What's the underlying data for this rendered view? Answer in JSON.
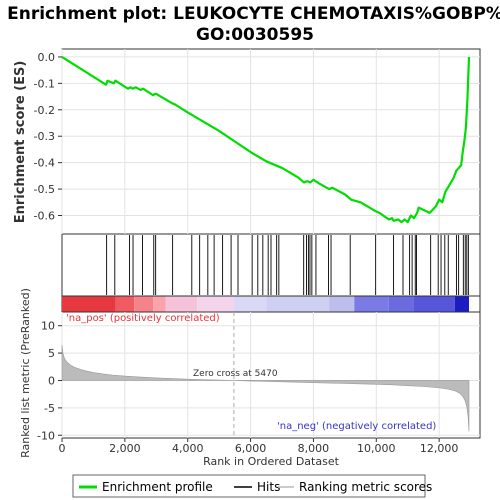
{
  "chart_data": {
    "type": "line",
    "title_line1": "Enrichment plot: LEUKOCYTE CHEMOTAXIS%GOBP%",
    "title_line2": "GO:0030595",
    "xlabel": "Rank in Ordered Dataset",
    "ylabel_top": "Enrichment score (ES)",
    "ylabel_bottom": "Ranked list metric (PreRanked)",
    "xlim": [
      0,
      13300
    ],
    "es_ylim": [
      -0.67,
      0.03
    ],
    "metric_ylim": [
      -10.5,
      12.5
    ],
    "x_ticks": [
      0,
      2000,
      4000,
      6000,
      8000,
      10000,
      12000
    ],
    "x_tick_labels": [
      "0",
      "2,000",
      "4,000",
      "6,000",
      "8,000",
      "10,000",
      "12,000"
    ],
    "es_ticks": [
      0.0,
      -0.1,
      -0.2,
      -0.3,
      -0.4,
      -0.5,
      -0.6
    ],
    "es_tick_labels": [
      "0.0",
      "-0.1",
      "-0.2",
      "-0.3",
      "-0.4",
      "-0.5",
      "-0.6"
    ],
    "metric_ticks": [
      10,
      5,
      0,
      -5,
      -10
    ],
    "metric_tick_labels": [
      "10",
      "5",
      "0",
      "-5",
      "-10"
    ],
    "enrichment_profile": {
      "x": [
        0,
        1400,
        1450,
        1650,
        1700,
        2100,
        2180,
        2250,
        2350,
        2500,
        2580,
        2900,
        2950,
        3000,
        3500,
        3600,
        4000,
        4500,
        5000,
        5500,
        6000,
        6500,
        7000,
        7500,
        7700,
        7800,
        7900,
        8000,
        8200,
        8500,
        8600,
        9000,
        9200,
        9500,
        10000,
        10100,
        10400,
        10500,
        10550,
        10700,
        10800,
        10900,
        11000,
        11100,
        11200,
        11300,
        11350,
        11700,
        11900,
        12000,
        12100,
        12200,
        12300,
        12450,
        12550,
        12700,
        12750,
        12800,
        12850,
        12900,
        12950
      ],
      "y": [
        0.0,
        -0.105,
        -0.09,
        -0.1,
        -0.09,
        -0.12,
        -0.115,
        -0.12,
        -0.115,
        -0.125,
        -0.12,
        -0.145,
        -0.14,
        -0.14,
        -0.175,
        -0.18,
        -0.21,
        -0.245,
        -0.28,
        -0.32,
        -0.36,
        -0.395,
        -0.42,
        -0.455,
        -0.475,
        -0.47,
        -0.475,
        -0.465,
        -0.48,
        -0.5,
        -0.495,
        -0.52,
        -0.54,
        -0.55,
        -0.585,
        -0.59,
        -0.615,
        -0.61,
        -0.62,
        -0.615,
        -0.625,
        -0.615,
        -0.625,
        -0.6,
        -0.61,
        -0.59,
        -0.57,
        -0.59,
        -0.565,
        -0.54,
        -0.55,
        -0.51,
        -0.49,
        -0.46,
        -0.43,
        -0.41,
        -0.36,
        -0.32,
        -0.27,
        -0.16,
        0.0
      ]
    },
    "hits": [
      1420,
      1680,
      2150,
      2260,
      2560,
      2920,
      2980,
      3520,
      4130,
      4380,
      4640,
      4840,
      5110,
      5380,
      5600,
      6050,
      6230,
      6390,
      6560,
      6650,
      6830,
      6900,
      7690,
      7780,
      7840,
      7890,
      7950,
      8080,
      8480,
      8560,
      9170,
      9980,
      10550,
      10850,
      11060,
      11140,
      11240,
      11280,
      11730,
      11970,
      12060,
      12180,
      12290,
      12550,
      12620,
      12770,
      12830,
      12880,
      12930
    ],
    "metric_curve": {
      "x": [
        0,
        30,
        80,
        150,
        250,
        400,
        600,
        800,
        1000,
        1300,
        1600,
        2000,
        2500,
        3000,
        3500,
        4000,
        4500,
        5000,
        5470,
        6000,
        7000,
        8000,
        9000,
        10000,
        10500,
        11000,
        11500,
        12000,
        12300,
        12500,
        12650,
        12750,
        12820,
        12880,
        12920,
        12950
      ],
      "y": [
        6.5,
        5.0,
        4.0,
        3.4,
        2.9,
        2.4,
        2.0,
        1.7,
        1.45,
        1.2,
        1.0,
        0.8,
        0.62,
        0.47,
        0.35,
        0.24,
        0.15,
        0.07,
        0.0,
        -0.1,
        -0.25,
        -0.4,
        -0.55,
        -0.7,
        -0.8,
        -0.95,
        -1.1,
        -1.35,
        -1.6,
        -1.9,
        -2.3,
        -2.9,
        -3.6,
        -4.8,
        -6.5,
        -9.3
      ]
    },
    "zero_cross_rank": 5470,
    "zero_cross_label": "Zero cross at 5470",
    "pos_label": "'na_pos' (positively correlated)",
    "neg_label": "'na_neg' (negatively correlated)",
    "legend": [
      "Enrichment profile",
      "Hits",
      "Ranking metric scores"
    ],
    "colors": {
      "profile": "#00dd00",
      "hit": "#000000",
      "metric_fill": "#bbbbbb",
      "pos_text": "#e8333a",
      "neg_text": "#3333cc"
    },
    "heat_segments": [
      {
        "from": 0,
        "to": 1700,
        "color": "#e8383f"
      },
      {
        "from": 1700,
        "to": 2300,
        "color": "#f25a62"
      },
      {
        "from": 2300,
        "to": 2900,
        "color": "#f7838a"
      },
      {
        "from": 2900,
        "to": 3300,
        "color": "#f9a3ab"
      },
      {
        "from": 3300,
        "to": 4300,
        "color": "#f6c2da"
      },
      {
        "from": 4300,
        "to": 5470,
        "color": "#f4d4ea"
      },
      {
        "from": 5470,
        "to": 6500,
        "color": "#d9d9f5"
      },
      {
        "from": 6500,
        "to": 8500,
        "color": "#cfcff2"
      },
      {
        "from": 8500,
        "to": 9300,
        "color": "#bdbdee"
      },
      {
        "from": 9300,
        "to": 10400,
        "color": "#7b7be6"
      },
      {
        "from": 10400,
        "to": 11200,
        "color": "#6b6be0"
      },
      {
        "from": 11200,
        "to": 12500,
        "color": "#5656d8"
      },
      {
        "from": 12500,
        "to": 12950,
        "color": "#1c1cc4"
      }
    ]
  }
}
